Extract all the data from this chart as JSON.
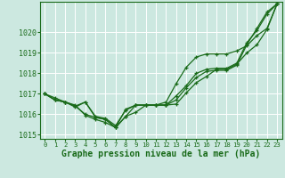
{
  "background_color": "#cce8e0",
  "grid_color": "#ffffff",
  "line_color": "#1a6b1a",
  "xlabel": "Graphe pression niveau de la mer (hPa)",
  "xlim": [
    -0.5,
    23.5
  ],
  "ylim": [
    1014.8,
    1021.5
  ],
  "yticks": [
    1015,
    1016,
    1017,
    1018,
    1019,
    1020
  ],
  "xticks": [
    0,
    1,
    2,
    3,
    4,
    5,
    6,
    7,
    8,
    9,
    10,
    11,
    12,
    13,
    14,
    15,
    16,
    17,
    18,
    19,
    20,
    21,
    22,
    23
  ],
  "series": [
    [
      1017.0,
      1016.7,
      1016.6,
      1016.4,
      1016.6,
      1015.9,
      1015.8,
      1015.45,
      1016.2,
      1016.45,
      1016.45,
      1016.45,
      1016.45,
      1016.7,
      1017.3,
      1017.8,
      1018.1,
      1018.15,
      1018.15,
      1018.4,
      1019.4,
      1020.2,
      1021.0,
      1021.4
    ],
    [
      1017.0,
      1016.7,
      1016.6,
      1016.4,
      1016.0,
      1015.85,
      1015.75,
      1015.35,
      1015.9,
      1016.1,
      1016.45,
      1016.45,
      1016.45,
      1016.9,
      1017.4,
      1018.0,
      1018.2,
      1018.25,
      1018.25,
      1018.5,
      1019.5,
      1020.1,
      1020.9,
      1021.4
    ],
    [
      1017.0,
      1016.8,
      1016.6,
      1016.45,
      1015.95,
      1015.75,
      1015.6,
      1015.35,
      1015.9,
      1016.45,
      1016.45,
      1016.45,
      1016.45,
      1016.5,
      1017.05,
      1017.55,
      1017.85,
      1018.2,
      1018.2,
      1018.45,
      1019.0,
      1019.4,
      1020.15,
      1021.4
    ],
    [
      1017.0,
      1016.7,
      1016.6,
      1016.35,
      1016.6,
      1015.85,
      1015.75,
      1015.35,
      1016.25,
      1016.45,
      1016.45,
      1016.45,
      1016.6,
      1017.5,
      1018.3,
      1018.8,
      1018.95,
      1018.95,
      1018.95,
      1019.1,
      1019.35,
      1019.85,
      1020.2,
      1021.4
    ]
  ],
  "ylabel_fontsize": 6,
  "xlabel_fontsize": 7,
  "tick_fontsize": 5.2,
  "linewidth": 0.9,
  "marker_size": 3.0
}
